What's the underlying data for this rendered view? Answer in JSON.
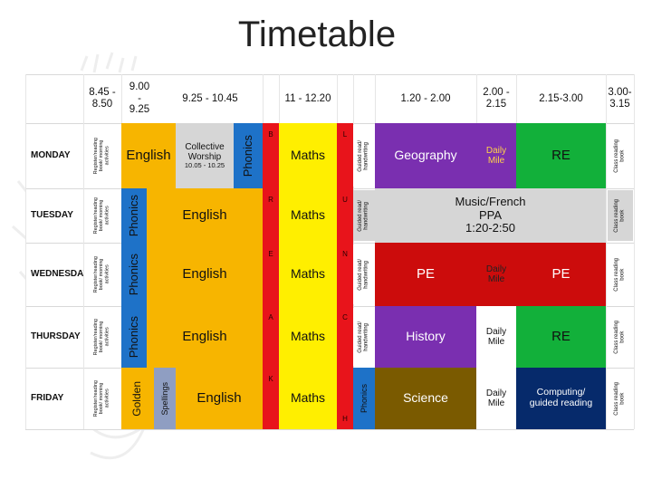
{
  "slide": {
    "title": "Timetable"
  },
  "colors": {
    "english": "#f7b500",
    "phonics": "#1e72c8",
    "maths": "#ffef00",
    "red": "#e8141b",
    "geography": "#7a2fb0",
    "re_green": "#12b03a",
    "pe_red": "#cc0c0c",
    "science": "#7a5a00",
    "computing": "#062a6b",
    "grey": "#d6d6d6",
    "spellings": "#8f9ec2"
  },
  "timetable": {
    "headers": {
      "t1": "8.45 -\n8.50",
      "t2": "9.00\n-\n9.25",
      "t3": "9.25 - 10.45",
      "t4": "11 - 12.20",
      "t5": "1.20 - 2.00",
      "t6": "2.00 -\n2.15",
      "t7": "2.15-3.00",
      "t8": "3.00-\n3.15"
    },
    "days": {
      "mon": "MONDAY",
      "tue": "TUESDAY",
      "wed": "WEDNESDAY",
      "thu": "THURSDAY",
      "fri": "FRIDAY"
    },
    "cells": {
      "register": "Register/reading\nbook/ morning\nactivities",
      "english": "English",
      "phonics": "Phonics",
      "maths": "Maths",
      "guided": "Guided read/\nhandwriting",
      "class_reading": "Class reading\nbook",
      "collective_worship": "Collective\nWorship",
      "collective_time": "10.05 - 10.25",
      "geography": "Geography",
      "daily_mile": "Daily\nMile",
      "re": "RE",
      "music_french": "Music/French\nPPA\n1:20-2:50",
      "pe": "PE",
      "history": "History",
      "science": "Science",
      "computing": "Computing/\nguided reading",
      "golden": "Golden",
      "spellings": "Spellings",
      "phonics_fri": "Phonics"
    },
    "break_letters": [
      "B",
      "R",
      "E",
      "A",
      "K"
    ],
    "lunch_letters": [
      "L",
      "U",
      "N",
      "C",
      "H"
    ]
  }
}
